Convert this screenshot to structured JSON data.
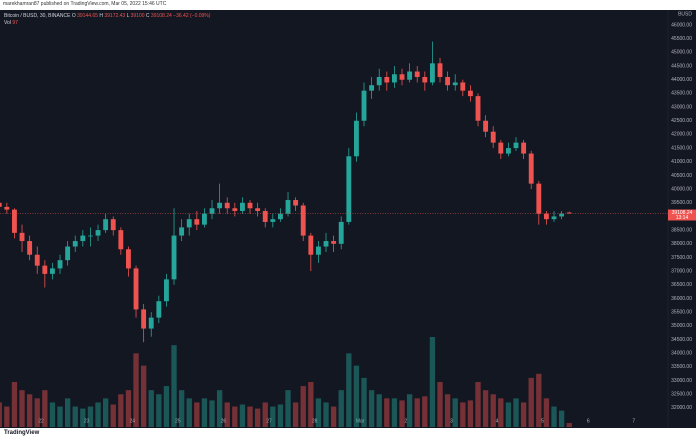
{
  "header": "marekhamran87 published on TradingView.com, Mar 05, 2022 15:46 UTC",
  "footer": "TradingView",
  "chart_data": {
    "type": "candlestick",
    "symbol": "Bitcoin / BUSD, 30, BINANCE",
    "ohlc_labels": [
      "O",
      "H",
      "L",
      "C"
    ],
    "change": "−36.42 (−0.09%)",
    "volume_label": "Vol",
    "axis_unit": "BUSD",
    "countdown": "13:14",
    "up_color": "#26a69a",
    "down_color": "#ef5350",
    "open": [
      39500,
      39350,
      39250,
      38400,
      38100,
      37600,
      37200,
      36900,
      37100,
      37400,
      37900,
      38100,
      38300,
      38300,
      38500,
      38900,
      38500,
      37800,
      37100,
      35600,
      34900,
      35300,
      35900,
      36700,
      38300,
      38600,
      38900,
      38700,
      39100,
      39300,
      39500,
      39300,
      39200,
      39500,
      39300,
      39200,
      38800,
      38900,
      39100,
      39600,
      39400,
      38300,
      37600,
      37900,
      38100,
      38000,
      38800,
      41200,
      42500,
      43600,
      43800,
      44100,
      43900,
      44200,
      44000,
      44300,
      44100,
      43900,
      44600,
      44100,
      43800,
      43900,
      43600,
      43400,
      42500,
      42100,
      41700,
      41300,
      41500,
      41700,
      41300,
      40200,
      39100,
      38900,
      39000,
      39144.65
    ],
    "high": [
      39650,
      39500,
      39300,
      38700,
      38300,
      37900,
      37400,
      37300,
      37600,
      38100,
      38300,
      38500,
      38600,
      38700,
      39100,
      39000,
      38600,
      37900,
      37200,
      35800,
      35500,
      36100,
      36900,
      39300,
      38900,
      39100,
      39200,
      39300,
      39600,
      40200,
      39700,
      39500,
      39700,
      39600,
      39500,
      39300,
      39100,
      39300,
      39900,
      39700,
      39500,
      38400,
      38100,
      38400,
      38300,
      39000,
      41500,
      42800,
      43900,
      44100,
      44400,
      44300,
      44500,
      44400,
      44600,
      44500,
      44300,
      45400,
      44800,
      44300,
      44200,
      44000,
      43800,
      43500,
      42700,
      42300,
      41800,
      41700,
      41900,
      41800,
      41400,
      40300,
      39200,
      39200,
      39200,
      39172.43
    ],
    "low": [
      39200,
      39100,
      38200,
      37700,
      37400,
      36900,
      36400,
      36700,
      36900,
      37200,
      37700,
      37900,
      37900,
      38100,
      38400,
      38300,
      37600,
      36800,
      35300,
      34400,
      34600,
      35100,
      35700,
      36500,
      38100,
      38300,
      38500,
      38600,
      38900,
      39100,
      39100,
      39000,
      39100,
      39100,
      39000,
      38600,
      38600,
      38800,
      39000,
      39200,
      38100,
      37000,
      37300,
      37700,
      37700,
      37800,
      38700,
      41000,
      42300,
      43300,
      43600,
      43600,
      43700,
      43800,
      43900,
      43900,
      43600,
      43800,
      43900,
      43600,
      43600,
      43400,
      43200,
      42300,
      41900,
      41500,
      41100,
      41200,
      41400,
      41100,
      40000,
      38700,
      38700,
      38800,
      38900,
      39100
    ],
    "close": [
      39350,
      39250,
      38400,
      38100,
      37600,
      37200,
      36900,
      37100,
      37400,
      37900,
      38100,
      38300,
      38300,
      38500,
      38900,
      38500,
      37800,
      37100,
      35600,
      34900,
      35300,
      35900,
      36700,
      38300,
      38600,
      38900,
      38700,
      39100,
      39300,
      39500,
      39300,
      39200,
      39500,
      39300,
      39200,
      38800,
      38900,
      39100,
      39600,
      39400,
      38300,
      37600,
      37900,
      38100,
      38000,
      38800,
      41200,
      42500,
      43600,
      43800,
      44100,
      43900,
      44200,
      44000,
      44300,
      44100,
      43900,
      44600,
      44100,
      43800,
      43900,
      43600,
      43400,
      42500,
      42100,
      41700,
      41300,
      41500,
      41700,
      41300,
      40200,
      39100,
      38900,
      39000,
      39100,
      39108.24
    ],
    "volume": [
      600,
      500,
      1100,
      900,
      800,
      700,
      900,
      600,
      500,
      700,
      500,
      450,
      500,
      600,
      700,
      550,
      800,
      900,
      1800,
      1500,
      900,
      800,
      1000,
      2000,
      900,
      700,
      600,
      700,
      650,
      900,
      600,
      500,
      550,
      500,
      450,
      600,
      500,
      550,
      900,
      600,
      1000,
      1100,
      700,
      600,
      500,
      900,
      1800,
      1500,
      1200,
      900,
      800,
      700,
      700,
      650,
      800,
      700,
      750,
      2200,
      1100,
      800,
      700,
      600,
      650,
      1100,
      900,
      800,
      700,
      600,
      700,
      600,
      1200,
      1300,
      700,
      500,
      400,
      97
    ],
    "xlim": [
      0.6,
      88.5
    ],
    "xticks": [
      {
        "value": 6,
        "label": "22"
      },
      {
        "value": 12,
        "label": "23"
      },
      {
        "value": 18,
        "label": "24"
      },
      {
        "value": 24,
        "label": "25"
      },
      {
        "value": 30,
        "label": "26"
      },
      {
        "value": 36,
        "label": "27"
      },
      {
        "value": 42,
        "label": "28"
      },
      {
        "value": 48,
        "label": "Mar"
      },
      {
        "value": 54,
        "label": "2"
      },
      {
        "value": 60,
        "label": "3"
      },
      {
        "value": 66,
        "label": "4"
      },
      {
        "value": 72,
        "label": "5"
      },
      {
        "value": 78,
        "label": "6"
      },
      {
        "value": 84,
        "label": "7"
      }
    ],
    "ylim": [
      31300,
      46550
    ],
    "yticks": [
      {
        "value": 32000,
        "label": "32000.00"
      },
      {
        "value": 32500,
        "label": "32500.00"
      },
      {
        "value": 33000,
        "label": "33000.00"
      },
      {
        "value": 33500,
        "label": "33500.00"
      },
      {
        "value": 34000,
        "label": "34000.00"
      },
      {
        "value": 34500,
        "label": "34500.00"
      },
      {
        "value": 35000,
        "label": "35000.00"
      },
      {
        "value": 35500,
        "label": "35500.00"
      },
      {
        "value": 36000,
        "label": "36000.00"
      },
      {
        "value": 36500,
        "label": "36500.00"
      },
      {
        "value": 37000,
        "label": "37000.00"
      },
      {
        "value": 37500,
        "label": "37500.00"
      },
      {
        "value": 38000,
        "label": "38000.00"
      },
      {
        "value": 38500,
        "label": "38500.00"
      },
      {
        "value": 39000,
        "label": "39000.00"
      },
      {
        "value": 39500,
        "label": "39500.00"
      },
      {
        "value": 40000,
        "label": "40000.00"
      },
      {
        "value": 40500,
        "label": "40500.00"
      },
      {
        "value": 41000,
        "label": "41000.00"
      },
      {
        "value": 41500,
        "label": "41500.00"
      },
      {
        "value": 42000,
        "label": "42000.00"
      },
      {
        "value": 42500,
        "label": "42500.00"
      },
      {
        "value": 43000,
        "label": "43000.00"
      },
      {
        "value": 43500,
        "label": "43500.00"
      },
      {
        "value": 44000,
        "label": "44000.00"
      },
      {
        "value": 44500,
        "label": "44500.00"
      },
      {
        "value": 45000,
        "label": "45000.00"
      },
      {
        "value": 45500,
        "label": "45500.00"
      },
      {
        "value": 46000,
        "label": "46000.00"
      }
    ],
    "grid": false
  }
}
